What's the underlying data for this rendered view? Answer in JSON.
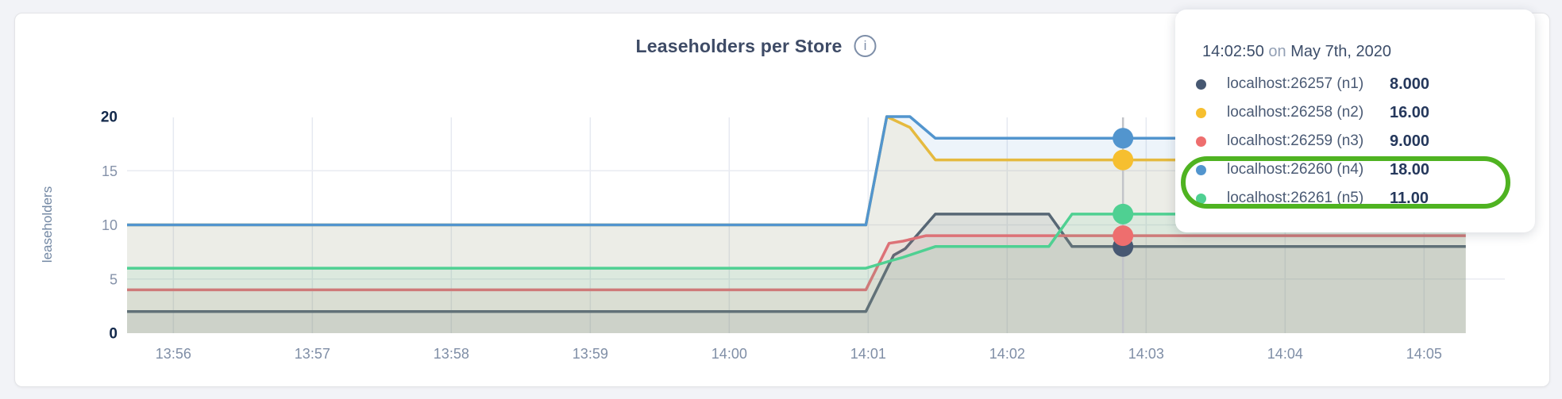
{
  "header": {
    "title": "Leaseholders per Store",
    "info_icon_glyph": "i"
  },
  "tooltip": {
    "time": "14:02:50",
    "connector": "on",
    "date": "May 7th, 2020",
    "highlight_color": "#4fb321",
    "rows": [
      {
        "label": "localhost:26257 (n1)",
        "value": "8.000",
        "color": "#475872",
        "highlighted": false
      },
      {
        "label": "localhost:26258 (n2)",
        "value": "16.00",
        "color": "#F6BF2F",
        "highlighted": false
      },
      {
        "label": "localhost:26259 (n3)",
        "value": "9.000",
        "color": "#EE6E6E",
        "highlighted": false
      },
      {
        "label": "localhost:26260 (n4)",
        "value": "18.00",
        "color": "#5295CE",
        "highlighted": true
      },
      {
        "label": "localhost:26261 (n5)",
        "value": "11.00",
        "color": "#4FD092",
        "highlighted": true
      }
    ]
  },
  "chart_data": {
    "type": "area-line",
    "title": "Leaseholders per Store",
    "xlabel": "",
    "ylabel": "leaseholders",
    "ylim": [
      0,
      20
    ],
    "y_ticks": [
      0,
      5,
      10,
      15,
      20
    ],
    "y_ticks_emphasized": [
      0,
      20
    ],
    "x_ticks": [
      "13:56",
      "13:57",
      "13:58",
      "13:59",
      "14:00",
      "14:01",
      "14:02",
      "14:03",
      "14:04",
      "14:05"
    ],
    "x_start_time": "13:55:40",
    "x_end_time": "14:05:18",
    "grid": true,
    "legend_position": "tooltip-overlay",
    "fill_opacity": 0.1,
    "hover": {
      "t_seconds": 430,
      "time": "14:02:50",
      "date": "May 7th, 2020"
    },
    "series": [
      {
        "name": "localhost:26257 (n1)",
        "color": "#475872",
        "hover_value": 8,
        "points": [
          [
            0,
            2
          ],
          [
            319,
            2
          ],
          [
            331,
            7.2
          ],
          [
            336,
            7.8
          ],
          [
            349,
            11
          ],
          [
            398,
            11
          ],
          [
            408,
            8
          ],
          [
            578,
            8
          ]
        ]
      },
      {
        "name": "localhost:26258 (n2)",
        "color": "#F6BF2F",
        "hover_value": 16,
        "points": [
          [
            0,
            10
          ],
          [
            319,
            10
          ],
          [
            328,
            20
          ],
          [
            338,
            19
          ],
          [
            349,
            16
          ],
          [
            578,
            16
          ]
        ]
      },
      {
        "name": "localhost:26259 (n3)",
        "color": "#EE6E6E",
        "hover_value": 9,
        "points": [
          [
            0,
            4
          ],
          [
            319,
            4
          ],
          [
            329,
            8.3
          ],
          [
            335,
            8.5
          ],
          [
            345,
            9
          ],
          [
            578,
            9
          ]
        ]
      },
      {
        "name": "localhost:26260 (n4)",
        "color": "#5295CE",
        "hover_value": 18,
        "points": [
          [
            0,
            10
          ],
          [
            319,
            10
          ],
          [
            328,
            20
          ],
          [
            338,
            20
          ],
          [
            349,
            18
          ],
          [
            578,
            18
          ]
        ]
      },
      {
        "name": "localhost:26261 (n5)",
        "color": "#4FD092",
        "hover_value": 11,
        "points": [
          [
            0,
            6
          ],
          [
            319,
            6
          ],
          [
            330,
            6.7
          ],
          [
            335,
            7
          ],
          [
            349,
            8
          ],
          [
            398,
            8
          ],
          [
            408,
            11
          ],
          [
            578,
            11
          ]
        ]
      }
    ]
  }
}
